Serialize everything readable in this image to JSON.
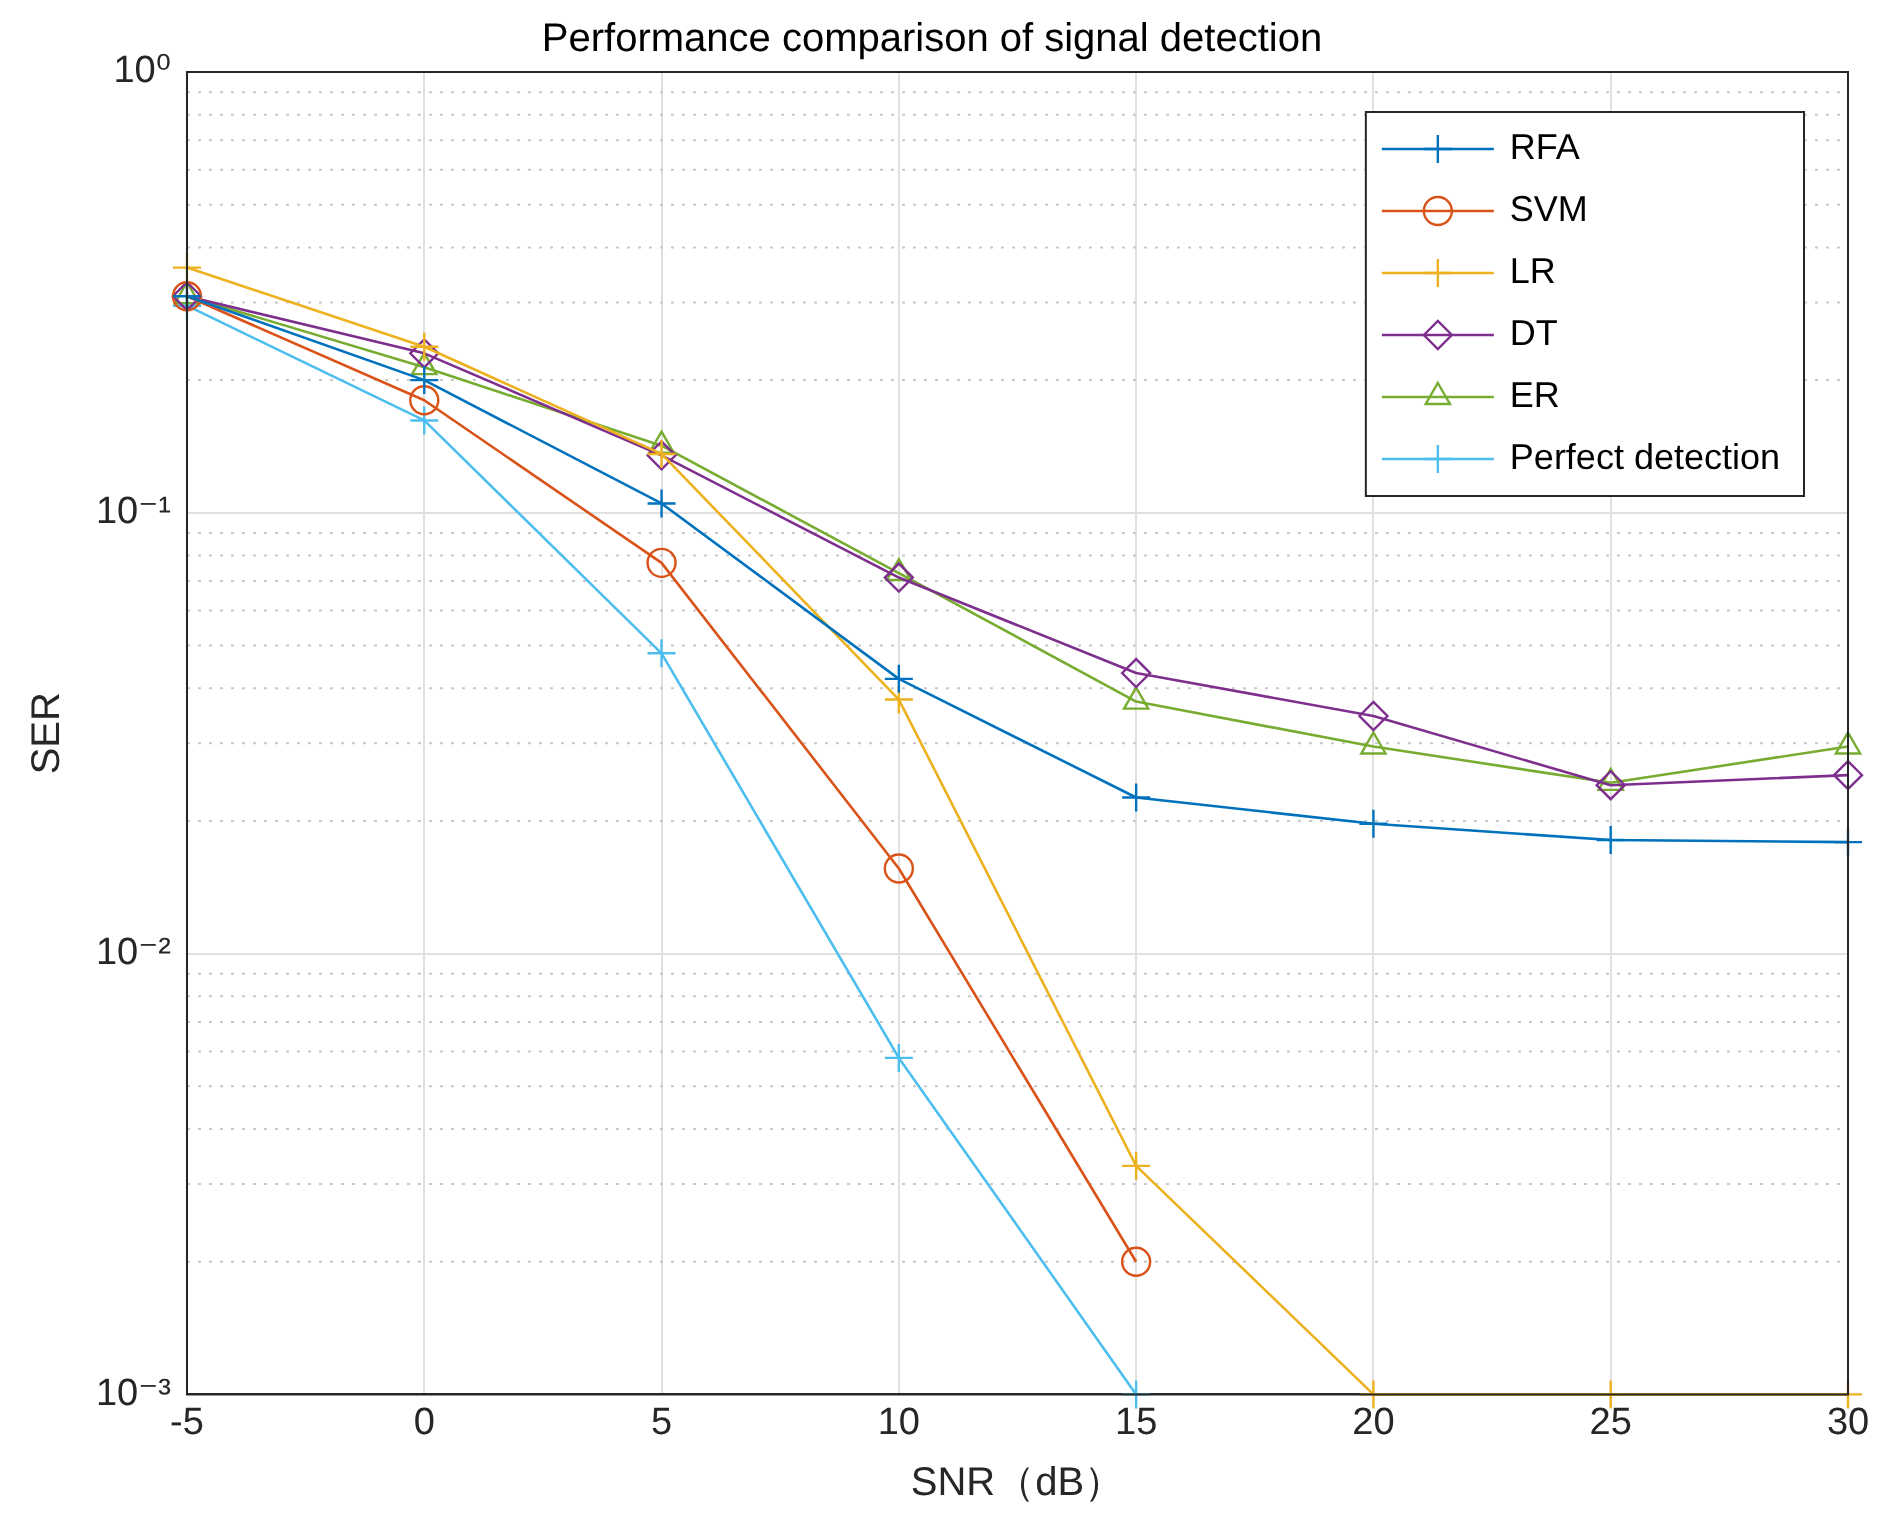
{
  "chart_data": {
    "type": "line",
    "title": "Performance comparison of signal detection",
    "xlabel": "SNR（dB）",
    "ylabel": "SER",
    "x": [
      -5,
      0,
      5,
      10,
      15,
      20,
      25,
      30
    ],
    "series": [
      {
        "name": "RFA",
        "color": "#0072bd",
        "marker": "cross",
        "values": [
          0.31,
          0.2,
          0.105,
          0.042,
          0.0226,
          0.0197,
          0.0181,
          0.0179
        ]
      },
      {
        "name": "SVM",
        "color": "#d95319",
        "marker": "circle",
        "values": [
          0.31,
          0.18,
          0.077,
          0.0156,
          0.002,
          null,
          null,
          null
        ]
      },
      {
        "name": "LR",
        "color": "#edb120",
        "marker": "cross",
        "values": [
          0.36,
          0.238,
          0.136,
          0.0377,
          0.0033,
          0.001,
          0.001,
          0.001
        ]
      },
      {
        "name": "DT",
        "color": "#7e2f8e",
        "marker": "diamond",
        "values": [
          0.31,
          0.23,
          0.135,
          0.0713,
          0.0433,
          0.0346,
          0.0241,
          0.0254
        ]
      },
      {
        "name": "ER",
        "color": "#77ac30",
        "marker": "triangle",
        "values": [
          0.31,
          0.214,
          0.142,
          0.073,
          0.0373,
          0.0295,
          0.0244,
          0.0295
        ]
      },
      {
        "name": "Perfect detection",
        "color": "#4dbeee",
        "marker": "cross",
        "values": [
          0.295,
          0.162,
          0.048,
          0.0058,
          0.001,
          null,
          null,
          null
        ]
      }
    ],
    "xlim": [
      -5,
      30
    ],
    "xticks": [
      -5,
      0,
      5,
      10,
      15,
      20,
      25,
      30
    ],
    "ylim": [
      0.001,
      1
    ],
    "yticks": [
      {
        "value": 0.001,
        "label": "10⁻³"
      },
      {
        "value": 0.01,
        "label": "10⁻²"
      },
      {
        "value": 0.1,
        "label": "10⁻¹"
      },
      {
        "value": 1,
        "label": "10⁰"
      }
    ],
    "log": "y",
    "grid": true,
    "legend": "top right",
    "line_style": "solid"
  }
}
